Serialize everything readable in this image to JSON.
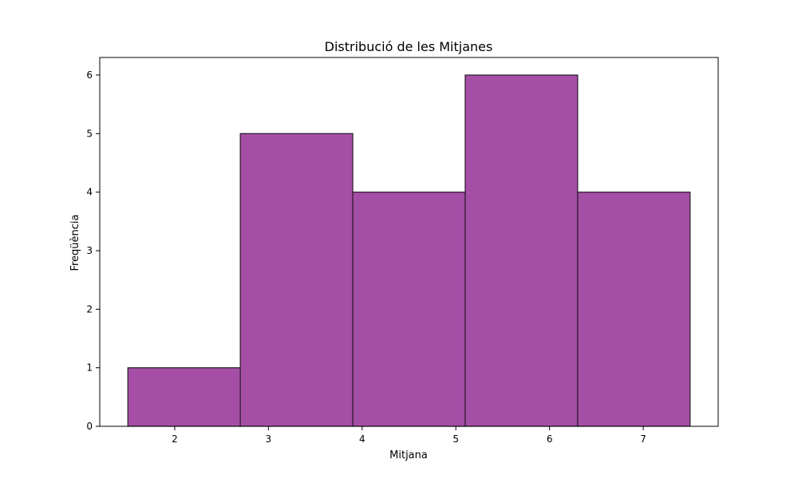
{
  "chart_data": {
    "type": "bar",
    "title": "Distribució de les Mitjanes",
    "xlabel": "Mitjana",
    "ylabel": "Freqüència",
    "bins": [
      {
        "x0": 1.5,
        "x1": 2.7,
        "count": 1
      },
      {
        "x0": 2.7,
        "x1": 3.9,
        "count": 5
      },
      {
        "x0": 3.9,
        "x1": 5.1,
        "count": 4
      },
      {
        "x0": 5.1,
        "x1": 6.3,
        "count": 6
      },
      {
        "x0": 6.3,
        "x1": 7.5,
        "count": 4
      }
    ],
    "xlim": [
      1.2,
      7.8
    ],
    "ylim": [
      0,
      6.3
    ],
    "xticks": [
      2,
      3,
      4,
      5,
      6,
      7
    ],
    "yticks": [
      0,
      1,
      2,
      3,
      4,
      5,
      6
    ],
    "grid": false,
    "colors": {
      "bar_fill": "#a54ea5",
      "bar_edge": "#2b1a2b",
      "axes": "#000000"
    }
  }
}
